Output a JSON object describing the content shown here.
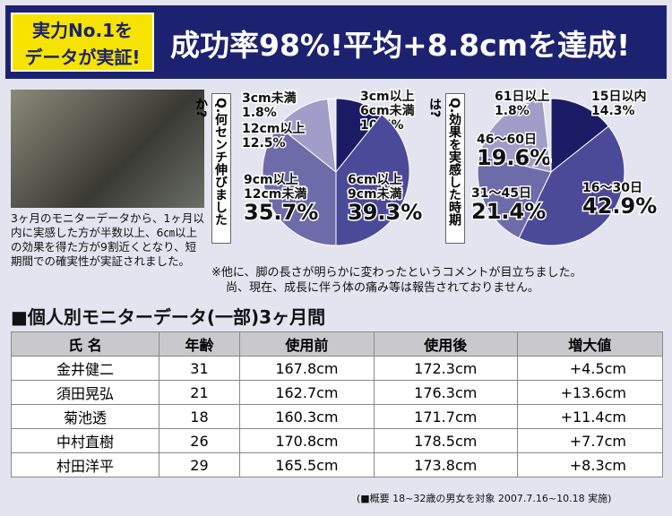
{
  "header": {
    "badge": [
      "実力No.1を",
      "データが実証!"
    ],
    "headline": "成功率98%!平均+8.8cmを達成!"
  },
  "caption": "3ヶ月のモニターデータから、1ヶ月以内に実感した方が半数以上、6㎝以上の効果を得た方が9割近くとなり、短期間での確実性が実証されました。",
  "chart_data": [
    {
      "type": "pie",
      "title": "Q.何センチ伸びましたか?",
      "categories": [
        [
          "3cm以上",
          "6cm未満"
        ],
        [
          "6cm以上",
          "9cm未満"
        ],
        [
          "9cm以上",
          "12cm未満"
        ],
        [
          "12cm以上"
        ],
        [
          "3cm未満"
        ]
      ],
      "values": [
        10.7,
        39.3,
        35.7,
        12.5,
        1.8
      ],
      "value_labels": [
        "10.7%",
        "39.3%",
        "35.7%",
        "12.5%",
        "1.8%"
      ],
      "colors": [
        "#1c1c66",
        "#4b4a98",
        "#6d6ca8",
        "#a09ec8",
        "#e4e2f0"
      ]
    },
    {
      "type": "pie",
      "title": "Q.効果を実感した時期は?",
      "categories": [
        [
          "15日以内"
        ],
        [
          "16〜30日"
        ],
        [
          "31〜45日"
        ],
        [
          "46〜60日"
        ],
        [
          "61日以上"
        ]
      ],
      "values": [
        14.3,
        42.9,
        21.4,
        19.6,
        1.8
      ],
      "value_labels": [
        "14.3%",
        "42.9%",
        "21.4%",
        "19.6%",
        "1.8%"
      ],
      "colors": [
        "#1c1c66",
        "#4b4a98",
        "#6d6ca8",
        "#a09ec8",
        "#e4e2f0"
      ]
    }
  ],
  "note": [
    "※他に、脚の長さが明らかに変わったというコメントが目立ちました。",
    "尚、現在、成長に伴う体の痛み等は報告されておりません。"
  ],
  "section_title": "■個人別モニターデータ(一部)3ヶ月間",
  "table": {
    "header": [
      "氏 名",
      "年齢",
      "使用前",
      "使用後",
      "増大値"
    ],
    "rows": [
      [
        "金井健二",
        "31",
        "167.8cm",
        "172.3cm",
        "+4.5cm"
      ],
      [
        "須田晃弘",
        "21",
        "162.7cm",
        "176.3cm",
        "+13.6cm"
      ],
      [
        "菊池透",
        "18",
        "160.3cm",
        "171.7cm",
        "+11.4cm"
      ],
      [
        "中村直樹",
        "26",
        "170.8cm",
        "178.5cm",
        "+7.7cm"
      ],
      [
        "村田洋平",
        "29",
        "165.5cm",
        "173.8cm",
        "+8.3cm"
      ]
    ]
  },
  "footnote": "(■概要 18~32歳の男女を対象 2007.7.16~10.18 実施)"
}
